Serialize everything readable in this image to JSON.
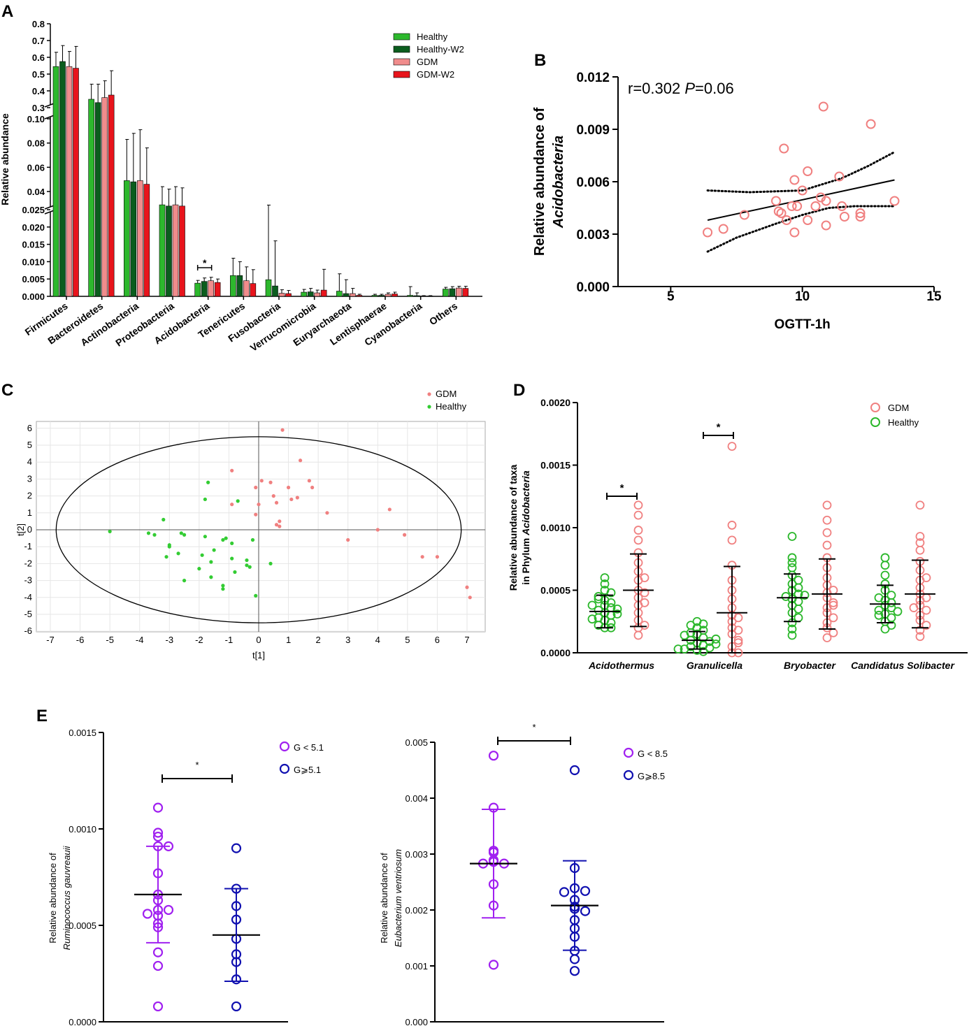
{
  "chart_data": [
    {
      "panel": "A",
      "type": "bar",
      "ylabel": "Relative abundance",
      "categories": [
        "Firmicutes",
        "Bacteroidetes",
        "Actinobacteria",
        "Proteobacteria",
        "Acidobacteria",
        "Tenericutes",
        "Fusobacteria",
        "Verrucomicrobia",
        "Euryarchaeota",
        "Lentisphaerae",
        "Cyanobacteria",
        "Others"
      ],
      "series": [
        {
          "name": "Healthy",
          "color": "#2db82d",
          "values": [
            0.545,
            0.35,
            0.049,
            0.029,
            0.0038,
            0.006,
            0.0048,
            0.0012,
            0.0015,
            0.0003,
            0.0003,
            0.0021
          ],
          "errors": [
            0.085,
            0.09,
            0.034,
            0.015,
            0.0008,
            0.005,
            0.024,
            0.0008,
            0.005,
            0.0003,
            0.0025,
            0.0005
          ]
        },
        {
          "name": "Healthy-W2",
          "color": "#0b5d1e",
          "values": [
            0.575,
            0.33,
            0.048,
            0.028,
            0.0043,
            0.006,
            0.003,
            0.0013,
            0.0008,
            0.0003,
            0.0002,
            0.0022
          ],
          "errors": [
            0.095,
            0.11,
            0.04,
            0.014,
            0.001,
            0.004,
            0.013,
            0.001,
            0.004,
            0.0003,
            0.0008,
            0.0006
          ]
        },
        {
          "name": "GDM",
          "color": "#f08c8c",
          "values": [
            0.545,
            0.36,
            0.049,
            0.029,
            0.0045,
            0.0045,
            0.0009,
            0.001,
            0.0008,
            0.0006,
            0.0001,
            0.0024
          ],
          "errors": [
            0.09,
            0.1,
            0.042,
            0.015,
            0.001,
            0.004,
            0.001,
            0.0008,
            0.0015,
            0.0004,
            0.0001,
            0.0005
          ]
        },
        {
          "name": "GDM-W2",
          "color": "#e8141c",
          "values": [
            0.535,
            0.375,
            0.046,
            0.028,
            0.004,
            0.0037,
            0.0008,
            0.0018,
            0.0003,
            0.0007,
            0.0001,
            0.0023
          ],
          "errors": [
            0.13,
            0.145,
            0.03,
            0.015,
            0.001,
            0.004,
            0.0009,
            0.006,
            0.0003,
            0.0005,
            0.0001,
            0.0006
          ]
        }
      ],
      "y_segments": [
        {
          "range": [
            0.3,
            0.8
          ],
          "ticks": [
            "0.3",
            "0.4",
            "0.5",
            "0.6",
            "0.7",
            "0.8"
          ]
        },
        {
          "range": [
            0.025,
            0.1
          ],
          "ticks": [
            "0.04",
            "0.06",
            "0.08",
            "0.10"
          ]
        },
        {
          "range": [
            0,
            0.025
          ],
          "ticks": [
            "0.000",
            "0.005",
            "0.010",
            "0.015",
            "0.020",
            "0.025"
          ]
        }
      ],
      "annotation": "*"
    },
    {
      "panel": "B",
      "type": "scatter",
      "xlabel": "OGTT-1h",
      "ylabel_line1": "Relative abundance of",
      "ylabel_line2": "Acidobacteria",
      "xlim": [
        3,
        15
      ],
      "ylim": [
        0,
        0.012
      ],
      "xticks": [
        "5",
        "10",
        "15"
      ],
      "yticks": [
        "0.000",
        "0.003",
        "0.006",
        "0.009",
        "0.012"
      ],
      "stat_r": "r=0.302",
      "stat_p_label": "P",
      "stat_p_value": "=0.06",
      "points": [
        [
          6.4,
          0.0031
        ],
        [
          7.0,
          0.0033
        ],
        [
          7.8,
          0.0041
        ],
        [
          9.0,
          0.0049
        ],
        [
          9.1,
          0.0043
        ],
        [
          9.2,
          0.0042
        ],
        [
          9.3,
          0.0079
        ],
        [
          9.4,
          0.0038
        ],
        [
          9.6,
          0.0046
        ],
        [
          9.7,
          0.0061
        ],
        [
          9.7,
          0.0031
        ],
        [
          9.8,
          0.0046
        ],
        [
          10.0,
          0.0055
        ],
        [
          10.2,
          0.0066
        ],
        [
          10.2,
          0.0038
        ],
        [
          10.5,
          0.0046
        ],
        [
          10.7,
          0.0051
        ],
        [
          10.8,
          0.0103
        ],
        [
          10.9,
          0.0049
        ],
        [
          10.9,
          0.0035
        ],
        [
          11.4,
          0.0063
        ],
        [
          11.5,
          0.0046
        ],
        [
          11.6,
          0.004
        ],
        [
          12.2,
          0.004
        ],
        [
          12.2,
          0.0042
        ],
        [
          12.6,
          0.0093
        ],
        [
          13.5,
          0.0049
        ]
      ],
      "fit_line": [
        [
          6.4,
          0.0038
        ],
        [
          13.5,
          0.0061
        ]
      ],
      "ci_upper": [
        [
          6.4,
          0.0055
        ],
        [
          8,
          0.0054
        ],
        [
          10,
          0.0055
        ],
        [
          11.5,
          0.0062
        ],
        [
          12.5,
          0.0069
        ],
        [
          13.5,
          0.0077
        ]
      ],
      "ci_lower": [
        [
          6.4,
          0.002
        ],
        [
          7.5,
          0.0028
        ],
        [
          9,
          0.0036
        ],
        [
          10,
          0.0041
        ],
        [
          11,
          0.0045
        ],
        [
          12,
          0.0046
        ],
        [
          13.5,
          0.0046
        ]
      ]
    },
    {
      "panel": "C",
      "type": "scatter",
      "xlabel": "t[1]",
      "ylabel": "t[2]",
      "xlim": [
        -7,
        7
      ],
      "ylim": [
        -6,
        6
      ],
      "xticks": [
        "-7",
        "-6",
        "-5",
        "-4",
        "-3",
        "-2",
        "-1",
        "0",
        "1",
        "2",
        "3",
        "4",
        "5",
        "6",
        "7"
      ],
      "yticks": [
        "-6",
        "-5",
        "-4",
        "-3",
        "-2",
        "-1",
        "0",
        "1",
        "2",
        "3",
        "4",
        "5",
        "6"
      ],
      "legend": [
        {
          "name": "GDM",
          "color": "#f08080"
        },
        {
          "name": "Healthy",
          "color": "#33cc33"
        }
      ],
      "ellipse": {
        "cx": 0,
        "cy": 0,
        "rx": 6.8,
        "ry": 5.5
      },
      "gdm": [
        [
          0.8,
          5.9
        ],
        [
          1.4,
          4.1
        ],
        [
          -0.9,
          3.5
        ],
        [
          0.1,
          2.9
        ],
        [
          0.4,
          2.8
        ],
        [
          0.5,
          2.0
        ],
        [
          1.7,
          2.9
        ],
        [
          1.1,
          1.8
        ],
        [
          -0.9,
          1.5
        ],
        [
          -0.1,
          2.5
        ],
        [
          0,
          1.5
        ],
        [
          0.6,
          1.6
        ],
        [
          1.0,
          2.5
        ],
        [
          1.3,
          1.9
        ],
        [
          1.8,
          2.5
        ],
        [
          2.3,
          1.0
        ],
        [
          4.4,
          1.2
        ],
        [
          -0.1,
          0.9
        ],
        [
          0.7,
          0.5
        ],
        [
          0.7,
          0.2
        ],
        [
          0.6,
          0.3
        ],
        [
          3,
          -0.6
        ],
        [
          4,
          0
        ],
        [
          4.9,
          -0.3
        ],
        [
          5.5,
          -1.6
        ],
        [
          6,
          -1.6
        ],
        [
          7,
          -3.4
        ],
        [
          7.1,
          -4
        ]
      ],
      "healthy": [
        [
          -1.7,
          2.8
        ],
        [
          -1.8,
          1.8
        ],
        [
          -0.7,
          1.7
        ],
        [
          -3.2,
          0.6
        ],
        [
          -5,
          -0.1
        ],
        [
          -3.7,
          -0.2
        ],
        [
          -3.5,
          -0.3
        ],
        [
          -3.0,
          -0.9
        ],
        [
          -2.6,
          -0.2
        ],
        [
          -2.5,
          -0.3
        ],
        [
          -1.8,
          -0.4
        ],
        [
          -1.1,
          -0.5
        ],
        [
          -1.2,
          -0.6
        ],
        [
          -0.9,
          -0.8
        ],
        [
          -0.2,
          -0.6
        ],
        [
          -3,
          -1.0
        ],
        [
          -3.1,
          -1.6
        ],
        [
          -2.7,
          -1.4
        ],
        [
          -1.6,
          -1.9
        ],
        [
          -1.9,
          -1.5
        ],
        [
          -1.5,
          -1.2
        ],
        [
          -0.9,
          -1.7
        ],
        [
          -0.4,
          -2.1
        ],
        [
          -2,
          -2.3
        ],
        [
          -1.6,
          -2.8
        ],
        [
          -0.4,
          -1.8
        ],
        [
          -0.8,
          -2.5
        ],
        [
          -0.3,
          -2.2
        ],
        [
          0.4,
          -2.0
        ],
        [
          -2.5,
          -3.0
        ],
        [
          -1.2,
          -3.3
        ],
        [
          -1.2,
          -3.5
        ],
        [
          -0.1,
          -3.9
        ]
      ]
    },
    {
      "panel": "D",
      "type": "scatter",
      "ylabel_line1": "Relative abundance of taxa",
      "ylabel_line2_prefix": "in Phylum ",
      "ylabel_line2_italic": "Acidobacteria",
      "ylim": [
        0,
        0.002
      ],
      "yticks": [
        "0.0000",
        "0.0005",
        "0.0010",
        "0.0015",
        "0.0020"
      ],
      "categories": [
        "Acidothermus",
        "Granulicella",
        "Bryobacter",
        "Candidatus Solibacter"
      ],
      "legend": [
        {
          "name": "GDM",
          "color": "#f08080"
        },
        {
          "name": "Healthy",
          "color": "#2ab72a"
        }
      ],
      "healthy": [
        {
          "mean": 0.00033,
          "sd": 0.00013,
          "values": [
            0.0006,
            0.00055,
            0.0005,
            0.00048,
            0.00045,
            0.00042,
            0.0004,
            0.00038,
            0.00036,
            0.00034,
            0.00032,
            0.0003,
            0.00028,
            0.00026,
            0.00024,
            0.00022,
            0.0002,
            0.0002,
            0.00035,
            0.00031,
            0.00027,
            0.00038,
            0.00043
          ]
        },
        {
          "mean": 0.0001,
          "sd": 7e-05,
          "values": [
            0.00025,
            0.00023,
            0.00022,
            0.0002,
            0.00018,
            0.00015,
            0.00012,
            0.0001,
            9e-05,
            8e-05,
            6e-05,
            5e-05,
            4e-05,
            3e-05,
            2e-05,
            1e-05,
            0.00014,
            0.00011,
            7e-05,
            3e-05,
            0.00016
          ]
        },
        {
          "mean": 0.00044,
          "sd": 0.00019,
          "values": [
            0.00093,
            0.00076,
            0.00072,
            0.00068,
            0.00062,
            0.00058,
            0.00055,
            0.0005,
            0.00047,
            0.00045,
            0.00043,
            0.00041,
            0.00038,
            0.00035,
            0.00032,
            0.00028,
            0.00024,
            0.00019,
            0.00014,
            0.00052,
            0.00046
          ]
        },
        {
          "mean": 0.00039,
          "sd": 0.00015,
          "values": [
            0.00076,
            0.0007,
            0.00062,
            0.00055,
            0.0005,
            0.00046,
            0.00042,
            0.0004,
            0.00038,
            0.00036,
            0.00034,
            0.00031,
            0.00028,
            0.00025,
            0.00022,
            0.00019,
            0.00044,
            0.00033,
            0.0003
          ]
        }
      ],
      "gdm": [
        {
          "mean": 0.0005,
          "sd": 0.00029,
          "values": [
            0.00118,
            0.0011,
            0.00098,
            0.0009,
            0.0008,
            0.00072,
            0.00065,
            0.00058,
            0.0005,
            0.00044,
            0.00038,
            0.00032,
            0.00026,
            0.0002,
            0.00014,
            0.0006,
            0.00048,
            0.0004,
            0.00022
          ]
        },
        {
          "mean": 0.00032,
          "sd": 0.00037,
          "values": [
            0.00165,
            0.00102,
            0.0009,
            0.0007,
            0.00058,
            0.0005,
            0.00043,
            0.00036,
            0.0003,
            0.00025,
            0.0002,
            0.00015,
            0.0001,
            5e-05,
            0.0,
            0.0,
            0.00028,
            0.00018,
            8e-05
          ]
        },
        {
          "mean": 0.00047,
          "sd": 0.00028,
          "values": [
            0.00118,
            0.00106,
            0.00096,
            0.00086,
            0.00076,
            0.00068,
            0.0006,
            0.00054,
            0.00048,
            0.00044,
            0.0004,
            0.00036,
            0.00032,
            0.00028,
            0.00024,
            0.0002,
            0.00016,
            0.00012,
            0.0005,
            0.00038
          ]
        },
        {
          "mean": 0.00047,
          "sd": 0.00027,
          "values": [
            0.00118,
            0.00093,
            0.00088,
            0.00082,
            0.00073,
            0.00066,
            0.00058,
            0.00052,
            0.00047,
            0.00042,
            0.00038,
            0.00034,
            0.0003,
            0.00026,
            0.00022,
            0.00018,
            0.00013,
            0.0006,
            0.00044,
            0.00036
          ]
        }
      ],
      "annotations": [
        "*",
        "*"
      ]
    },
    {
      "panel": "E1",
      "type": "scatter",
      "ylabel_line1": "Relative abundance of",
      "ylabel_line2": "Ruminococcus gauvreauii",
      "ylim": [
        0,
        0.0015
      ],
      "yticks": [
        "0.0000",
        "0.0005",
        "0.0010",
        "0.0015"
      ],
      "legend": [
        {
          "name": "G < 5.1",
          "color": "#a020f0"
        },
        {
          "name": "G⩾5.1",
          "color": "#1010b0"
        }
      ],
      "groups": [
        {
          "color": "#a020f0",
          "mean": 0.00066,
          "sd": 0.00025,
          "values": [
            0.00111,
            0.00098,
            0.00096,
            0.00091,
            0.00091,
            0.00077,
            0.00066,
            0.00063,
            0.00058,
            0.00058,
            0.00056,
            0.00055,
            0.00051,
            0.00049,
            0.00036,
            0.00029,
            8e-05
          ]
        },
        {
          "color": "#1010b0",
          "mean": 0.00045,
          "sd": 0.00024,
          "values": [
            0.0009,
            0.00069,
            0.0006,
            0.00053,
            0.00043,
            0.00035,
            0.00031,
            0.00022,
            8e-05
          ]
        }
      ],
      "annotation": "*"
    },
    {
      "panel": "E2",
      "type": "scatter",
      "ylabel_line1": "Relative abundance of",
      "ylabel_line2": "Eubacterium ventriosum",
      "ylim": [
        0,
        0.005
      ],
      "yticks": [
        "0.000",
        "0.001",
        "0.002",
        "0.003",
        "0.004",
        "0.005"
      ],
      "legend": [
        {
          "name": "G < 8.5",
          "color": "#a020f0"
        },
        {
          "name": "G⩾8.5",
          "color": "#1010b0"
        }
      ],
      "groups": [
        {
          "color": "#a020f0",
          "mean": 0.00283,
          "sd": 0.00097,
          "values": [
            0.00476,
            0.00383,
            0.00306,
            0.00303,
            0.00289,
            0.00286,
            0.00283,
            0.00283,
            0.00246,
            0.00208,
            0.00102
          ]
        },
        {
          "color": "#1010b0",
          "mean": 0.00208,
          "sd": 0.0008,
          "values": [
            0.0045,
            0.00275,
            0.00239,
            0.00234,
            0.00232,
            0.00218,
            0.00206,
            0.00202,
            0.00198,
            0.00182,
            0.00167,
            0.00152,
            0.00127,
            0.00112,
            0.00091
          ]
        }
      ],
      "annotation": "*"
    }
  ],
  "panel_labels": {
    "a": "A",
    "b": "B",
    "c": "C",
    "d": "D",
    "e": "E"
  }
}
